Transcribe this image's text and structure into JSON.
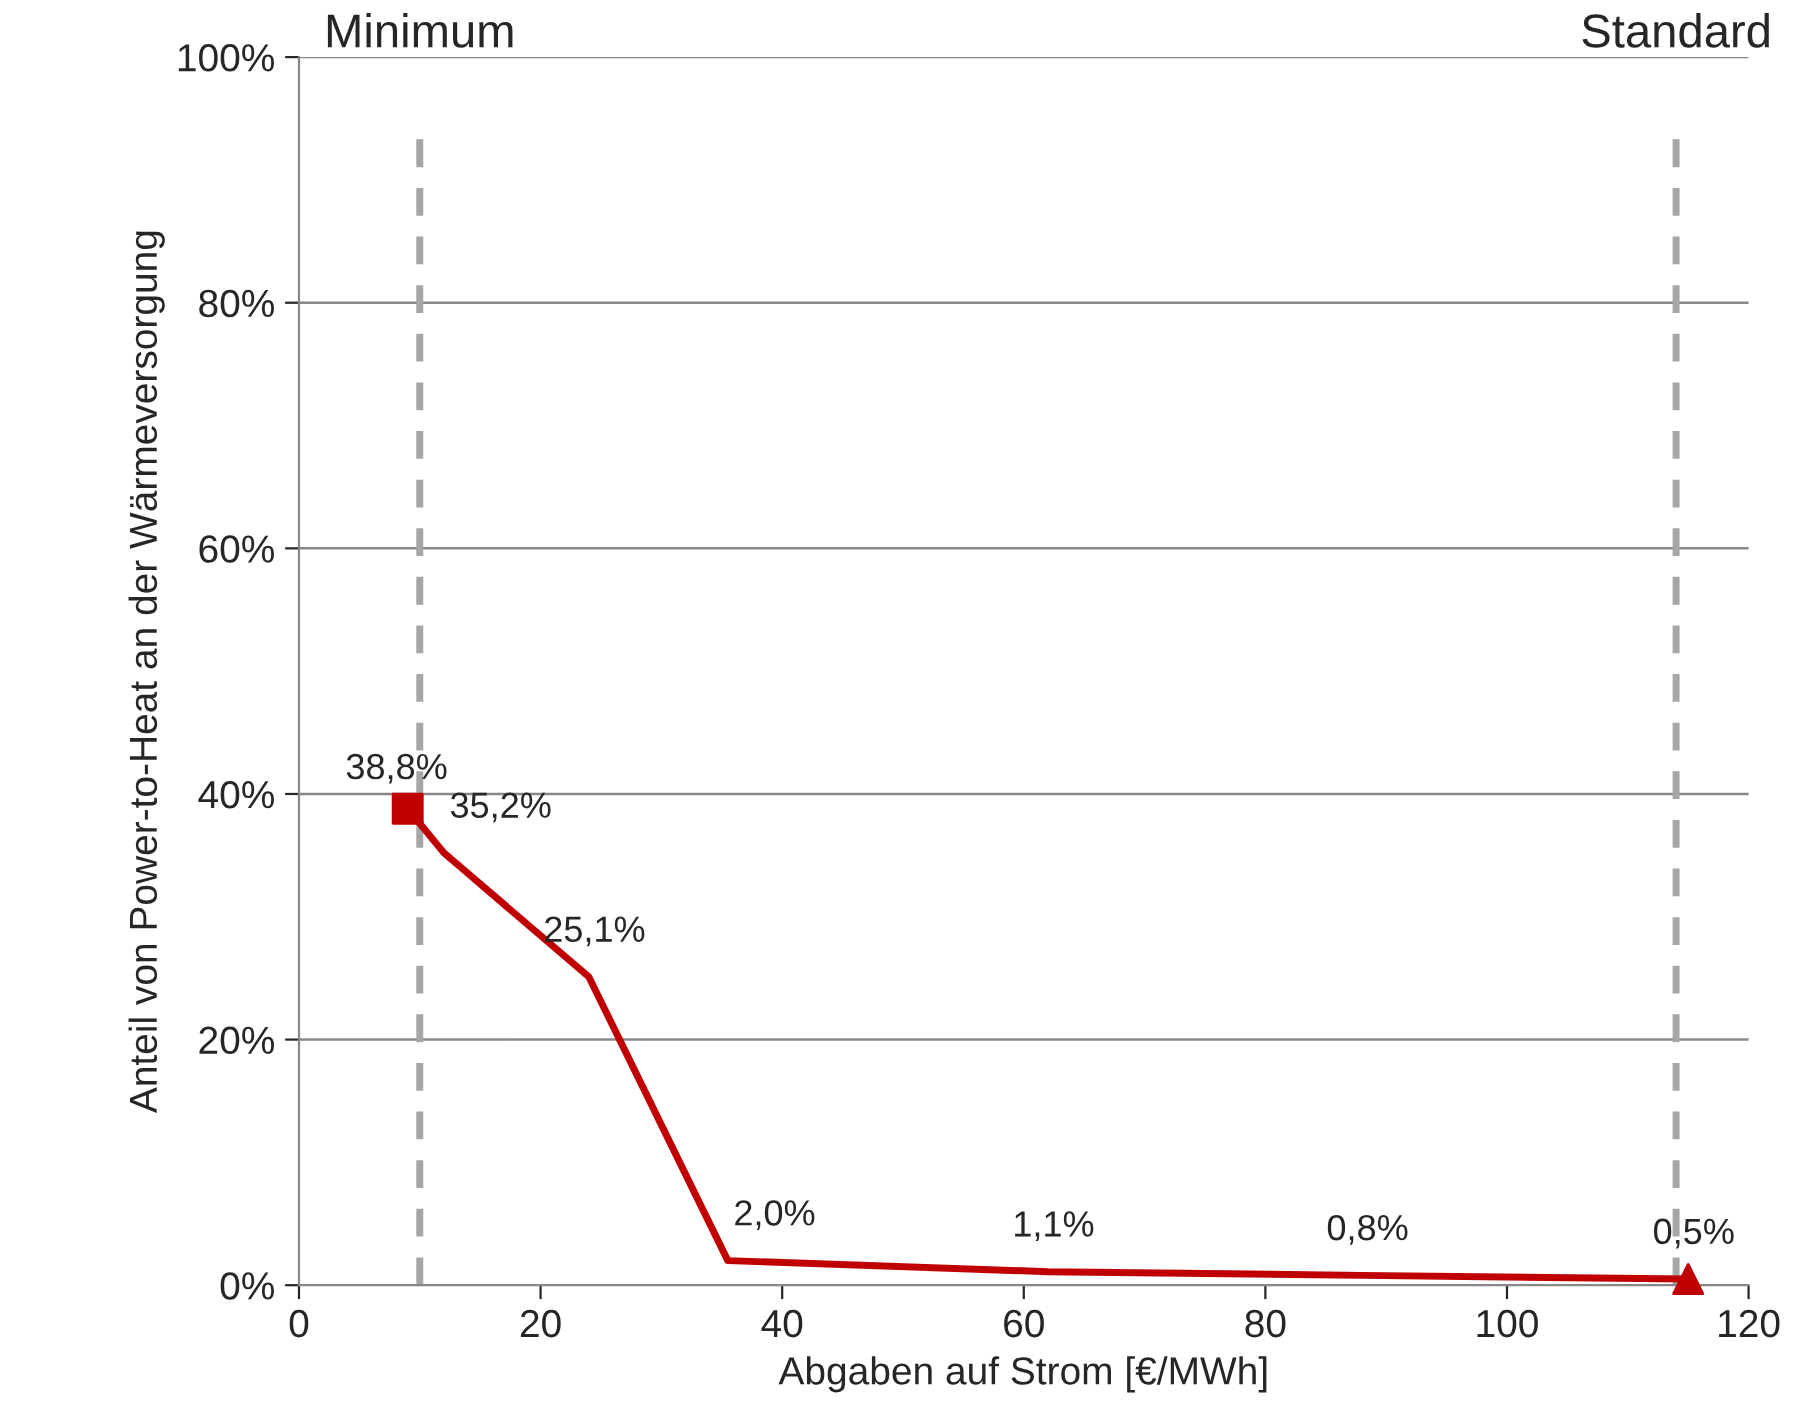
{
  "chart_data": {
    "type": "line",
    "xlabel": "Abgaben auf Strom [€/MWh]",
    "ylabel": "Anteil von Power-to-Heat an der Wärmeversorgung",
    "series": [
      {
        "color": "#c00000",
        "x": [
          9,
          12,
          24,
          35.5,
          62,
          88,
          115
        ],
        "values": [
          38.8,
          35.2,
          25.1,
          2.0,
          1.1,
          0.8,
          0.5
        ],
        "value_labels": [
          "38,8%",
          "35,2%",
          "25,1%",
          "2,0%",
          "1,1%",
          "0,8%",
          "0,5%"
        ],
        "marker": "none"
      },
      {
        "type": "scatter",
        "color": "#c00000",
        "x": [
          9
        ],
        "values": [
          38.8
        ],
        "marker": "square"
      },
      {
        "type": "scatter",
        "color": "#c00000",
        "x": [
          115
        ],
        "values": [
          0.5
        ],
        "marker": "triangle"
      }
    ],
    "xlim": [
      0,
      120
    ],
    "xticks": [
      0,
      20,
      40,
      60,
      80,
      100,
      120
    ],
    "ylim": [
      0,
      100
    ],
    "yticks": [
      {
        "value": 0,
        "label": "0%"
      },
      {
        "value": 20,
        "label": "20%"
      },
      {
        "value": 40,
        "label": "40%"
      },
      {
        "value": 60,
        "label": "60%"
      },
      {
        "value": 80,
        "label": "80%"
      },
      {
        "value": 100,
        "label": "100%"
      }
    ],
    "ref_lines": [
      {
        "axis": "x",
        "value": 10,
        "label": "Minimum",
        "color": "#a6a6a6",
        "line_style": "dashed"
      },
      {
        "axis": "x",
        "value": 114,
        "label": "Standard",
        "color": "#a6a6a6",
        "line_style": "dashed"
      }
    ],
    "grid": "y",
    "legend": false
  }
}
